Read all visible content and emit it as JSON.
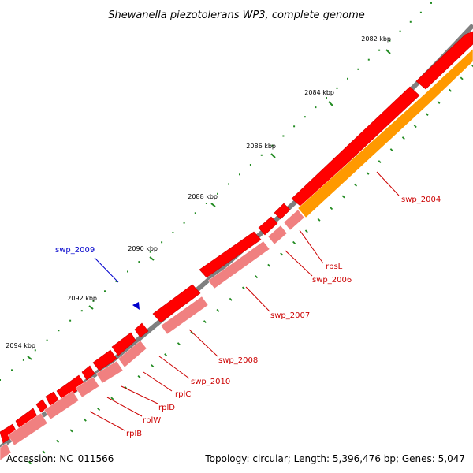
{
  "title": "Shewanella piezotolerans WP3, complete genome",
  "footer": {
    "accession": "Accession: NC_011566",
    "summary": "Topology: circular; Length: 5,396,476 bp; Genes: 5,047"
  },
  "ticks": [
    {
      "label": "2082 kbp"
    },
    {
      "label": "2084 kbp"
    },
    {
      "label": "2086 kbp"
    },
    {
      "label": "2088 kbp"
    },
    {
      "label": "2090 kbp"
    },
    {
      "label": "2092 kbp"
    },
    {
      "label": "2094 kbp"
    }
  ],
  "genes": [
    {
      "name": "swp_2004",
      "color": "#cc0000"
    },
    {
      "name": "rpsL",
      "color": "#cc0000"
    },
    {
      "name": "swp_2006",
      "color": "#cc0000"
    },
    {
      "name": "swp_2007",
      "color": "#cc0000"
    },
    {
      "name": "swp_2008",
      "color": "#cc0000"
    },
    {
      "name": "swp_2010",
      "color": "#cc0000"
    },
    {
      "name": "rplC",
      "color": "#cc0000"
    },
    {
      "name": "rplD",
      "color": "#cc0000"
    },
    {
      "name": "rplW",
      "color": "#cc0000"
    },
    {
      "name": "rplB",
      "color": "#cc0000"
    },
    {
      "name": "swp_2009",
      "color": "#0000cc"
    }
  ],
  "colors": {
    "backbone": "#7f7f7f",
    "cds": "#ff0000",
    "cds_dark": "#cc0000",
    "rna": "#f08080",
    "gene_orange": "#ff9900",
    "tick_major": "#228b22",
    "tick_minor": "#228b22",
    "label_red": "#cc0000",
    "label_blue": "#0000cc"
  }
}
